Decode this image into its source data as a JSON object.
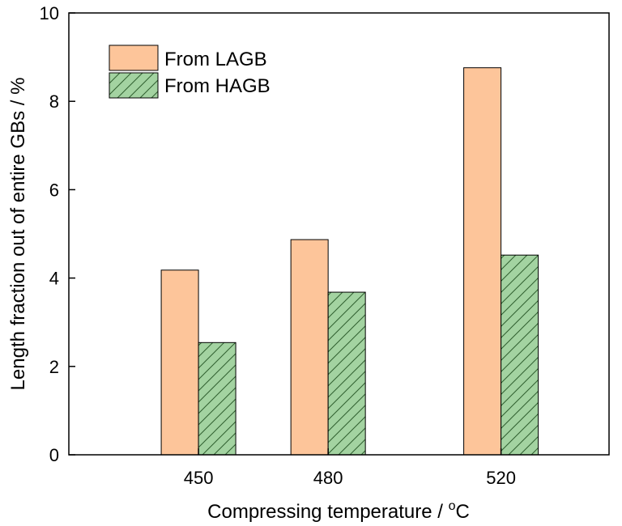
{
  "chart_data": {
    "type": "bar",
    "x": [
      450,
      480,
      520
    ],
    "categories": [
      "450",
      "480",
      "520"
    ],
    "series": [
      {
        "name": "From LAGB",
        "values": [
          4.18,
          4.87,
          8.76
        ],
        "color": "#FDC59A",
        "pattern": "solid"
      },
      {
        "name": "From HAGB",
        "values": [
          2.54,
          3.68,
          4.52
        ],
        "color": "#A3D3A1",
        "pattern": "hatch"
      }
    ],
    "xlabel": "Compressing temperature / ",
    "xlabel_unit": "C",
    "xlabel_sup": "o",
    "ylabel": "Length fraction out of entire GBs / %",
    "xlim": [
      420,
      545
    ],
    "ylim": [
      0,
      10
    ],
    "yticks": [
      "0",
      "2",
      "4",
      "6",
      "8",
      "10"
    ],
    "ytick_values": [
      0,
      2,
      4,
      6,
      8,
      10
    ],
    "grid": false,
    "legend_position": "top-left"
  }
}
